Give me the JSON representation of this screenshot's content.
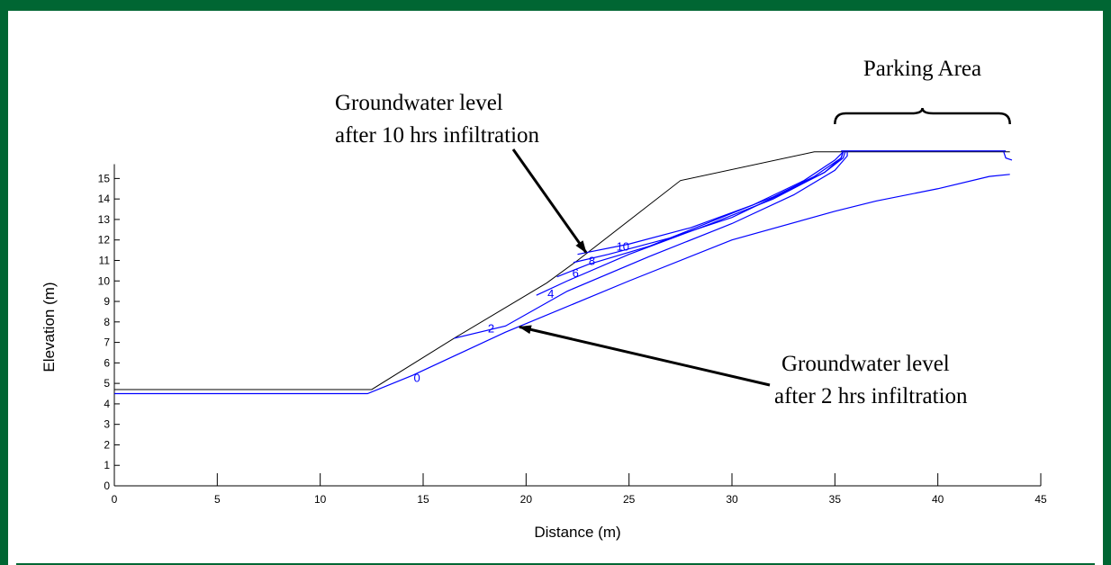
{
  "chart_data": {
    "type": "line",
    "title": "",
    "xlabel": "Distance (m)",
    "ylabel": "Elevation (m)",
    "xlim": [
      0,
      45
    ],
    "ylim": [
      0,
      15.7
    ],
    "xticks": [
      0,
      5,
      10,
      15,
      20,
      25,
      30,
      35,
      40,
      45
    ],
    "yticks": [
      0,
      1,
      2,
      3,
      4,
      5,
      6,
      7,
      8,
      9,
      10,
      11,
      12,
      13,
      14,
      15
    ],
    "grid": false,
    "slope_profile": {
      "color": "#000000",
      "x": [
        0,
        12.5,
        16.5,
        19.5,
        21,
        22.5,
        27.5,
        34,
        43.5
      ],
      "y": [
        4.7,
        4.7,
        7.2,
        9.0,
        9.9,
        11.0,
        14.9,
        16.3,
        16.3
      ]
    },
    "series": [
      {
        "contour_label": "0",
        "color": "#0000ff",
        "x": [
          0,
          12.3,
          14.5,
          19,
          25,
          30,
          35,
          37,
          40,
          42.5,
          43.5
        ],
        "y": [
          4.5,
          4.5,
          5.4,
          7.5,
          10.0,
          12.0,
          13.4,
          13.9,
          14.5,
          15.1,
          15.2
        ]
      },
      {
        "contour_label": "2",
        "color": "#0000ff",
        "x": [
          16.5,
          19,
          22,
          26,
          30,
          33,
          35,
          35.6,
          35.6
        ],
        "y": [
          7.2,
          7.8,
          9.5,
          11.2,
          12.8,
          14.2,
          15.4,
          16.1,
          16.3
        ]
      },
      {
        "contour_label": "4",
        "color": "#0000ff",
        "x": [
          20.5,
          22,
          25,
          29,
          32,
          34.5,
          35.4,
          35.5
        ],
        "y": [
          9.3,
          10.0,
          11.3,
          12.8,
          14.0,
          15.3,
          16.0,
          16.3
        ]
      },
      {
        "contour_label": "6",
        "color": "#0000ff",
        "x": [
          21.5,
          23,
          26,
          29,
          32,
          34,
          35.3,
          35.4
        ],
        "y": [
          10.2,
          10.8,
          11.7,
          12.9,
          14.1,
          15.1,
          16.0,
          16.3
        ]
      },
      {
        "contour_label": "8",
        "color": "#0000ff",
        "x": [
          22.3,
          24,
          27,
          30,
          32.5,
          34.5,
          35.3,
          35.4
        ],
        "y": [
          10.9,
          11.3,
          12.1,
          13.1,
          14.3,
          15.3,
          16.0,
          16.3
        ]
      },
      {
        "contour_label": "10",
        "color": "#0000ff",
        "x": [
          22.5,
          25,
          28,
          31,
          33.5,
          35,
          35.4
        ],
        "y": [
          11.3,
          11.8,
          12.6,
          13.7,
          14.9,
          15.9,
          16.3
        ]
      }
    ],
    "contour_labels": [
      {
        "text": "0",
        "x": 14.7,
        "y": 5.3
      },
      {
        "text": "2",
        "x": 18.3,
        "y": 7.7
      },
      {
        "text": "4",
        "x": 21.2,
        "y": 9.4
      },
      {
        "text": "6",
        "x": 22.4,
        "y": 10.4
      },
      {
        "text": "8",
        "x": 23.2,
        "y": 11.0
      },
      {
        "text": "10",
        "x": 24.7,
        "y": 11.7
      }
    ],
    "annotations": [
      {
        "id": "gw10",
        "lines": [
          "Groundwater level",
          "after 10 hrs infiltration"
        ],
        "arrow_to": {
          "x": 23,
          "y": 11.3
        }
      },
      {
        "id": "gw2",
        "lines": [
          "Groundwater level",
          "after 2 hrs infiltration"
        ],
        "arrow_to": {
          "x": 19.5,
          "y": 7.8
        }
      },
      {
        "id": "parking",
        "lines": [
          "Parking Area"
        ],
        "span_x": [
          35,
          43.5
        ]
      }
    ]
  }
}
